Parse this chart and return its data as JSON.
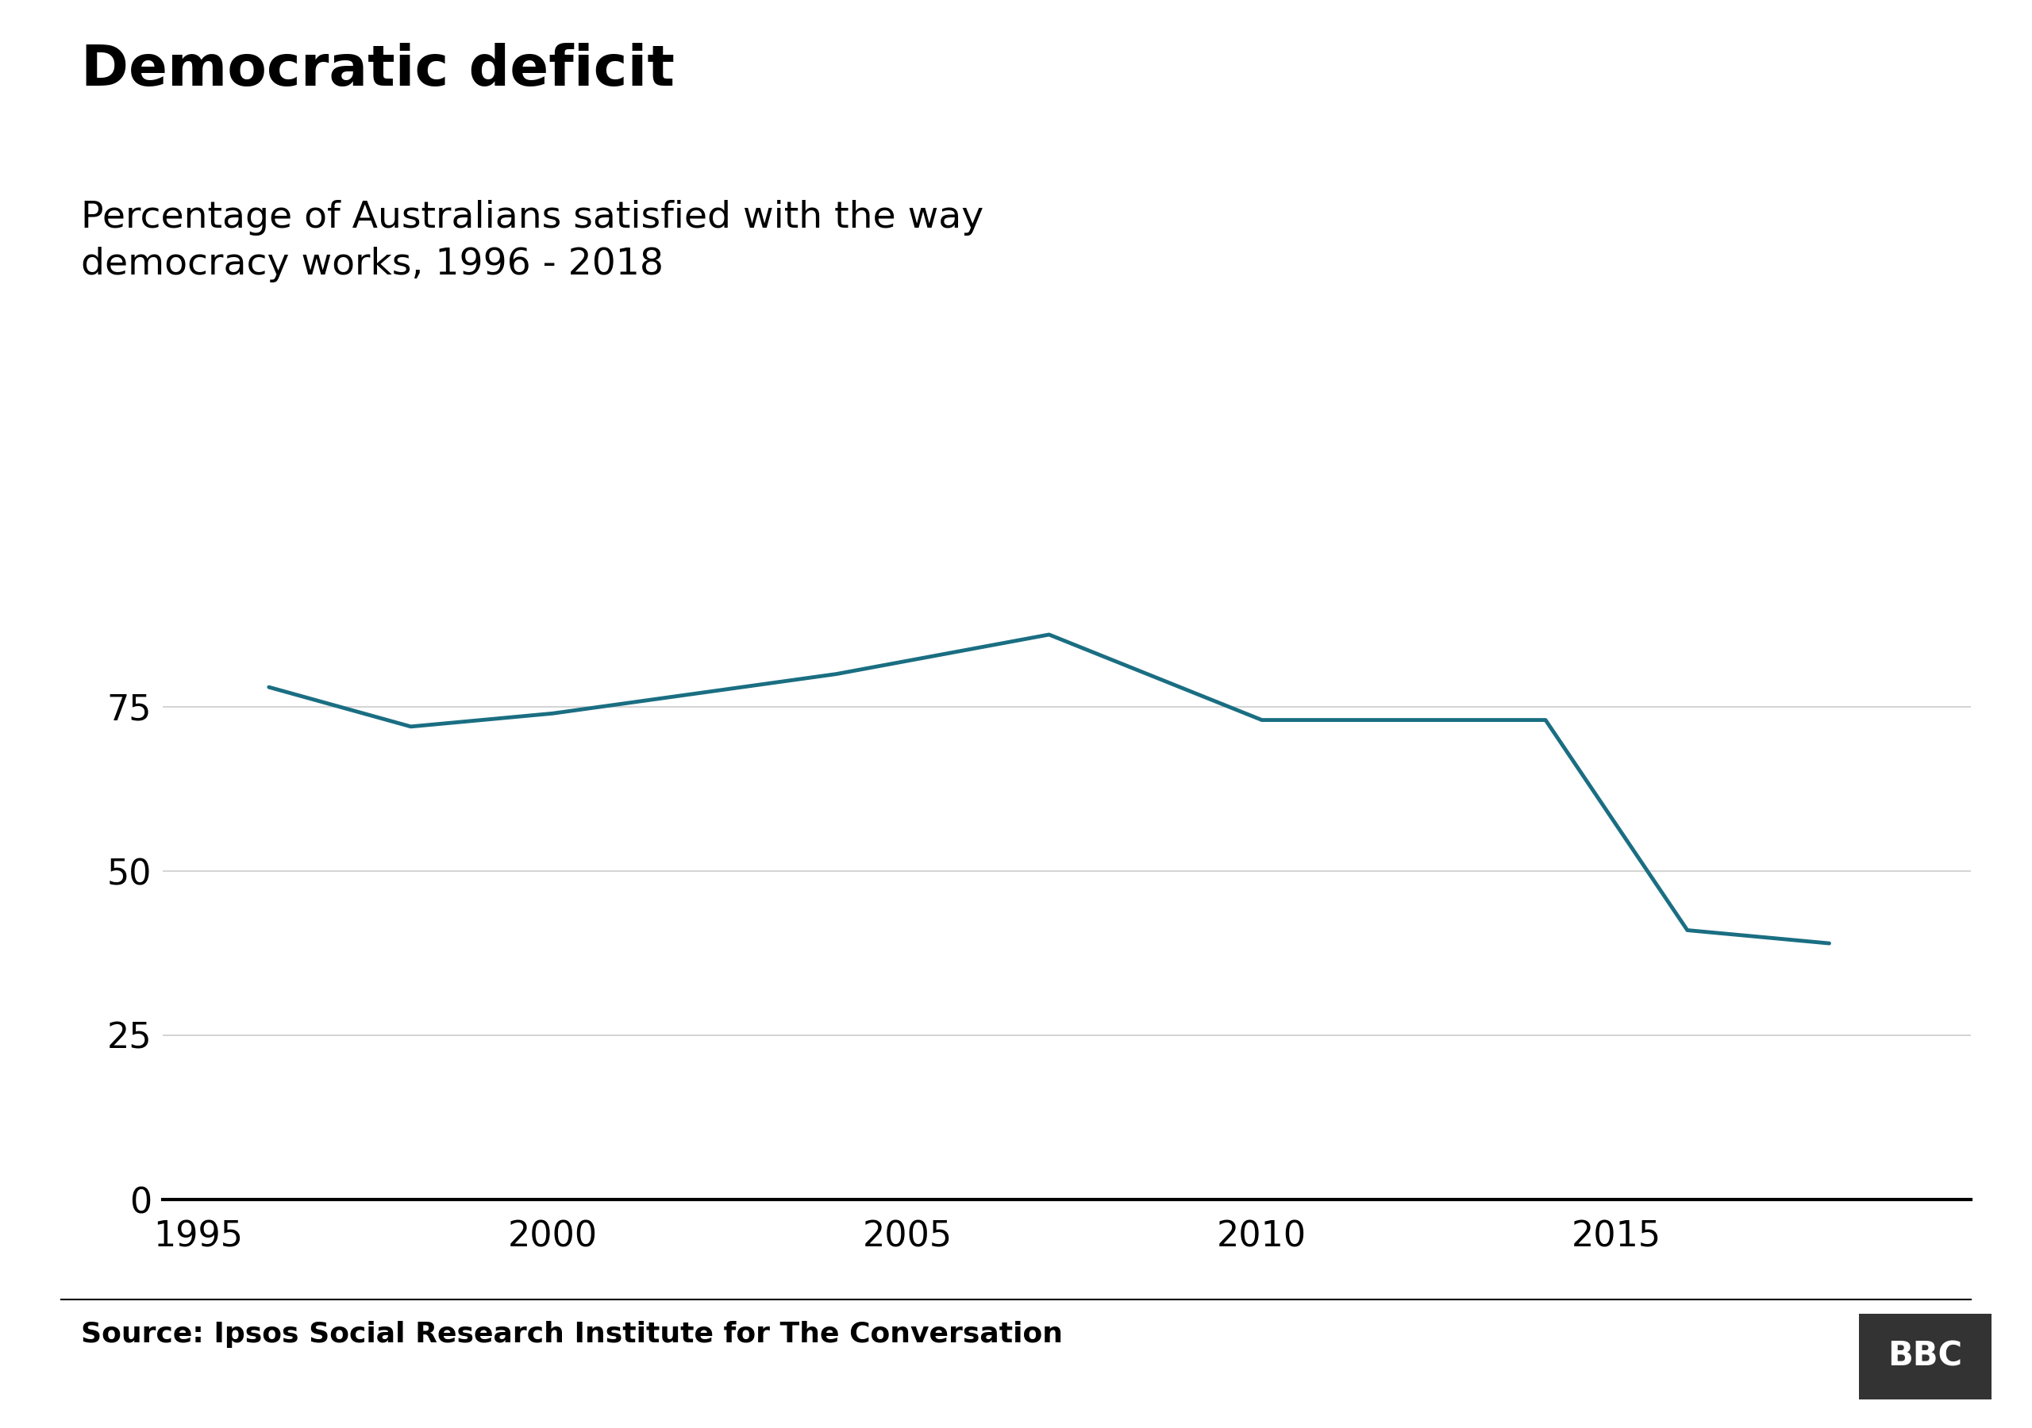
{
  "title": "Democratic deficit",
  "subtitle": "Percentage of Australians satisfied with the way\ndemocracy works, 1996 - 2018",
  "source": "Source: Ipsos Social Research Institute for The Conversation",
  "bbc_label": "BBC",
  "years": [
    1996,
    1998,
    2000,
    2004,
    2007,
    2010,
    2014,
    2016,
    2018
  ],
  "values": [
    78,
    72,
    74,
    80,
    86,
    73,
    73,
    41,
    39
  ],
  "line_color": "#1a6e82",
  "line_width": 3.5,
  "background_color": "#ffffff",
  "yticks": [
    0,
    25,
    50,
    75
  ],
  "xticks": [
    1995,
    2000,
    2005,
    2010,
    2015
  ],
  "xlim": [
    1994.5,
    2020
  ],
  "ylim": [
    0,
    100
  ],
  "title_fontsize": 52,
  "subtitle_fontsize": 34,
  "tick_fontsize": 32,
  "source_fontsize": 26
}
